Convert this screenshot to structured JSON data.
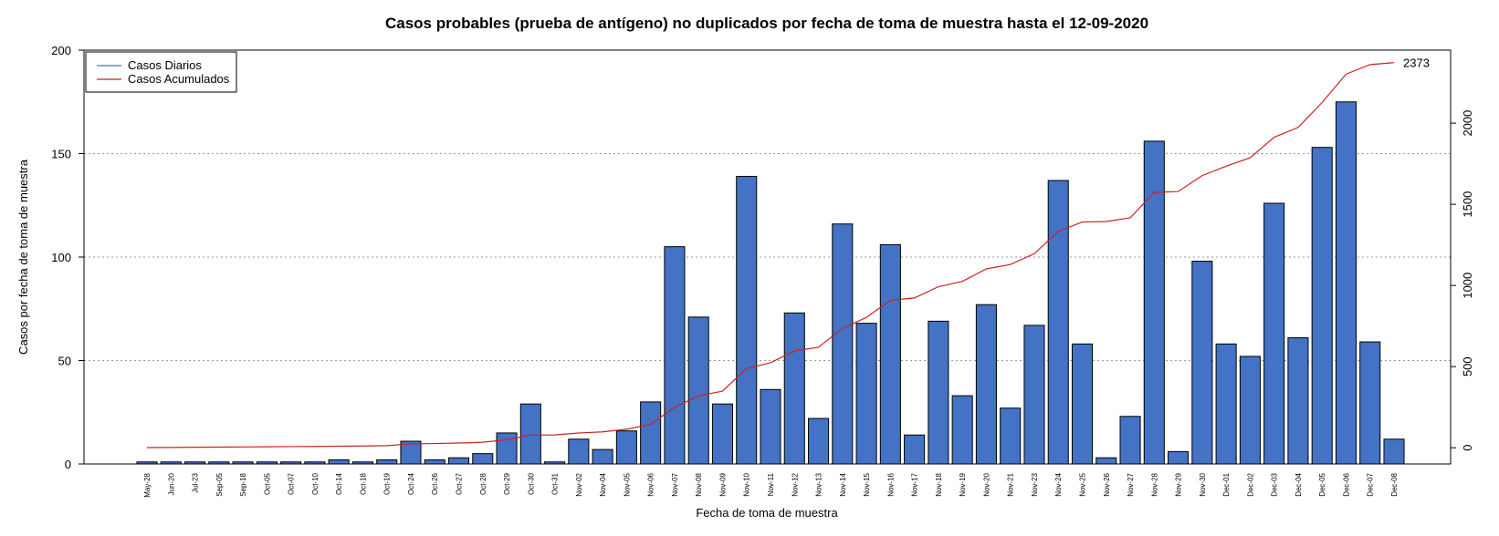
{
  "chart_data": {
    "type": "bar",
    "title": "Casos probables (prueba de antígeno) no duplicados por fecha de toma de muestra hasta el 12-09-2020",
    "xlabel": "Fecha de toma de muestra",
    "ylabel": "Casos por fecha de toma de muestra",
    "ylim": [
      0,
      200
    ],
    "y2lim": [
      -100,
      2450
    ],
    "yticks": [
      0,
      50,
      100,
      150,
      200
    ],
    "y2ticks": [
      0,
      500,
      1000,
      1500,
      2000
    ],
    "grid": "horizontal dotted",
    "legend_position": "top-left",
    "categories": [
      "May-28",
      "Jun-20",
      "Jul-23",
      "Sep-05",
      "Sep-18",
      "Oct-05",
      "Oct-07",
      "Oct-10",
      "Oct-14",
      "Oct-18",
      "Oct-19",
      "Oct-24",
      "Oct-26",
      "Oct-27",
      "Oct-28",
      "Oct-29",
      "Oct-30",
      "Oct-31",
      "Nov-02",
      "Nov-04",
      "Nov-05",
      "Nov-06",
      "Nov-07",
      "Nov-08",
      "Nov-09",
      "Nov-10",
      "Nov-11",
      "Nov-12",
      "Nov-13",
      "Nov-14",
      "Nov-15",
      "Nov-16",
      "Nov-17",
      "Nov-18",
      "Nov-19",
      "Nov-20",
      "Nov-21",
      "Nov-23",
      "Nov-24",
      "Nov-25",
      "Nov-26",
      "Nov-27",
      "Nov-28",
      "Nov-29",
      "Nov-30",
      "Dec-01",
      "Dec-02",
      "Dec-03",
      "Dec-04",
      "Dec-05",
      "Dec-06",
      "Dec-07",
      "Dec-08"
    ],
    "series": [
      {
        "name": "Casos Diarios",
        "color": "#4472C4",
        "axis": "left",
        "values": [
          1,
          1,
          1,
          1,
          1,
          1,
          1,
          1,
          2,
          1,
          2,
          11,
          2,
          3,
          5,
          15,
          29,
          1,
          12,
          7,
          16,
          30,
          105,
          71,
          29,
          139,
          36,
          73,
          22,
          116,
          68,
          106,
          14,
          69,
          33,
          77,
          27,
          67,
          137,
          58,
          3,
          23,
          156,
          6,
          98,
          58,
          52,
          126,
          61,
          153,
          175,
          59,
          12
        ]
      },
      {
        "name": "Casos Acumulados",
        "color": "#CC2222",
        "axis": "right",
        "values": [
          1,
          2,
          3,
          4,
          5,
          6,
          7,
          8,
          10,
          11,
          13,
          24,
          26,
          29,
          34,
          49,
          78,
          79,
          91,
          98,
          114,
          144,
          249,
          320,
          349,
          488,
          524,
          597,
          619,
          735,
          803,
          909,
          923,
          992,
          1025,
          1102,
          1129,
          1196,
          1333,
          1391,
          1394,
          1417,
          1573,
          1579,
          1677,
          1735,
          1787,
          1913,
          1974,
          2127,
          2302,
          2361,
          2373
        ]
      }
    ],
    "annotations": [
      {
        "text": "2373"
      }
    ]
  }
}
